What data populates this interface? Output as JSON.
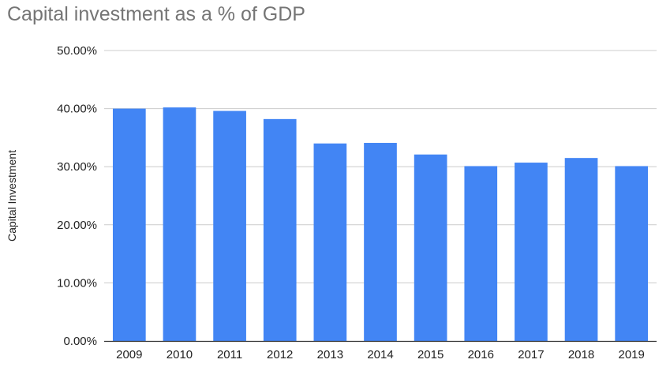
{
  "chart_data": {
    "type": "bar",
    "title": "Capital investment as a % of GDP",
    "xlabel": "",
    "ylabel": "Capital Investment",
    "categories": [
      "2009",
      "2010",
      "2011",
      "2012",
      "2013",
      "2014",
      "2015",
      "2016",
      "2017",
      "2018",
      "2019"
    ],
    "values": [
      40.0,
      40.2,
      39.6,
      38.2,
      34.0,
      34.1,
      32.1,
      30.1,
      30.7,
      31.5,
      30.1
    ],
    "ylim": [
      0,
      50
    ],
    "yticks": [
      "0.00%",
      "10.00%",
      "20.00%",
      "30.00%",
      "40.00%",
      "50.00%"
    ],
    "ytick_values": [
      0,
      10,
      20,
      30,
      40,
      50
    ],
    "grid": true,
    "legend": "none",
    "colors": {
      "bar": "#4285f4",
      "grid": "#cccccc",
      "axis": "#333333",
      "title": "#757575"
    }
  }
}
